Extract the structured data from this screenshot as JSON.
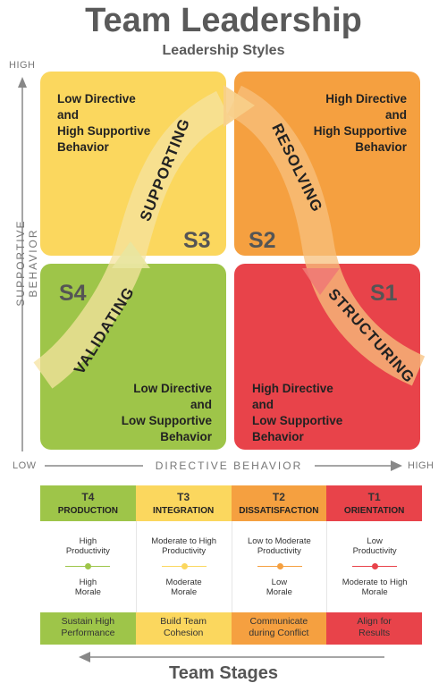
{
  "title": "Team Leadership",
  "subtitle": "Leadership Styles",
  "axes": {
    "y_high": "HIGH",
    "y_label": "SUPPORTIVE BEHAVIOR",
    "x_low": "LOW",
    "x_label": "DIRECTIVE BEHAVIOR",
    "x_high": "HIGH"
  },
  "quadrants": {
    "s3": {
      "label": "S3",
      "style": "SUPPORTING",
      "line1": "Low Directive",
      "line2": "and",
      "line3": "High Supportive",
      "line4": "Behavior",
      "color": "#fbd75e"
    },
    "s2": {
      "label": "S2",
      "style": "RESOLVING",
      "line1": "High Directive",
      "line2": "and",
      "line3": "High Supportive",
      "line4": "Behavior",
      "color": "#f5a040"
    },
    "s4": {
      "label": "S4",
      "style": "VALIDATING",
      "line1": "Low Directive",
      "line2": "and",
      "line3": "Low Supportive",
      "line4": "Behavior",
      "color": "#9ec549"
    },
    "s1": {
      "label": "S1",
      "style": "STRUCTURING",
      "line1": "High Directive",
      "line2": "and",
      "line3": "Low Supportive",
      "line4": "Behavior",
      "color": "#e8434a"
    }
  },
  "stages": [
    {
      "code": "T4",
      "name": "PRODUCTION",
      "top1": "High",
      "top2": "Productivity",
      "bottom1": "High",
      "bottom2": "Morale",
      "action1": "Sustain High",
      "action2": "Performance",
      "color": "#9ec549"
    },
    {
      "code": "T3",
      "name": "INTEGRATION",
      "top1": "Moderate to High",
      "top2": "Productivity",
      "bottom1": "Moderate",
      "bottom2": "Morale",
      "action1": "Build Team",
      "action2": "Cohesion",
      "color": "#fbd75e"
    },
    {
      "code": "T2",
      "name": "DISSATISFACTION",
      "top1": "Low to Moderate",
      "top2": "Productivity",
      "bottom1": "Low",
      "bottom2": "Morale",
      "action1": "Communicate",
      "action2": "during Conflict",
      "color": "#f5a040"
    },
    {
      "code": "T1",
      "name": "ORIENTATION",
      "top1": "Low",
      "top2": "Productivity",
      "bottom1": "Moderate to High",
      "bottom2": "Morale",
      "action1": "Align for",
      "action2": "Results",
      "color": "#e8434a"
    }
  ],
  "bottom_title": "Team Stages"
}
